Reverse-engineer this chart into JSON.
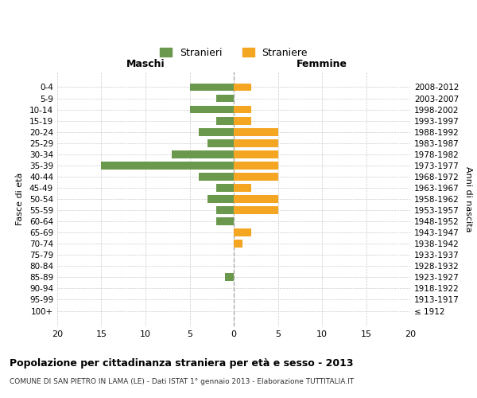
{
  "age_groups": [
    "100+",
    "95-99",
    "90-94",
    "85-89",
    "80-84",
    "75-79",
    "70-74",
    "65-69",
    "60-64",
    "55-59",
    "50-54",
    "45-49",
    "40-44",
    "35-39",
    "30-34",
    "25-29",
    "20-24",
    "15-19",
    "10-14",
    "5-9",
    "0-4"
  ],
  "birth_years": [
    "≤ 1912",
    "1913-1917",
    "1918-1922",
    "1923-1927",
    "1928-1932",
    "1933-1937",
    "1938-1942",
    "1943-1947",
    "1948-1952",
    "1953-1957",
    "1958-1962",
    "1963-1967",
    "1968-1972",
    "1973-1977",
    "1978-1982",
    "1983-1987",
    "1988-1992",
    "1993-1997",
    "1998-2002",
    "2003-2007",
    "2008-2012"
  ],
  "maschi": [
    0,
    0,
    0,
    1,
    0,
    0,
    0,
    0,
    2,
    2,
    3,
    2,
    4,
    15,
    7,
    3,
    4,
    2,
    5,
    2,
    5
  ],
  "femmine": [
    0,
    0,
    0,
    0,
    0,
    0,
    1,
    2,
    0,
    5,
    5,
    2,
    5,
    5,
    5,
    5,
    5,
    2,
    2,
    0,
    2
  ],
  "maschi_color": "#6a994e",
  "femmine_color": "#f4a623",
  "grid_color": "#cccccc",
  "title": "Popolazione per cittadinanza straniera per età e sesso - 2013",
  "subtitle": "COMUNE DI SAN PIETRO IN LAMA (LE) - Dati ISTAT 1° gennaio 2013 - Elaborazione TUTTITALIA.IT",
  "ylabel_left": "Fasce di età",
  "ylabel_right": "Anni di nascita",
  "xlabel_left": "Maschi",
  "xlabel_top_right": "Femmine",
  "legend_maschi": "Stranieri",
  "legend_femmine": "Straniere",
  "xlim": 20
}
